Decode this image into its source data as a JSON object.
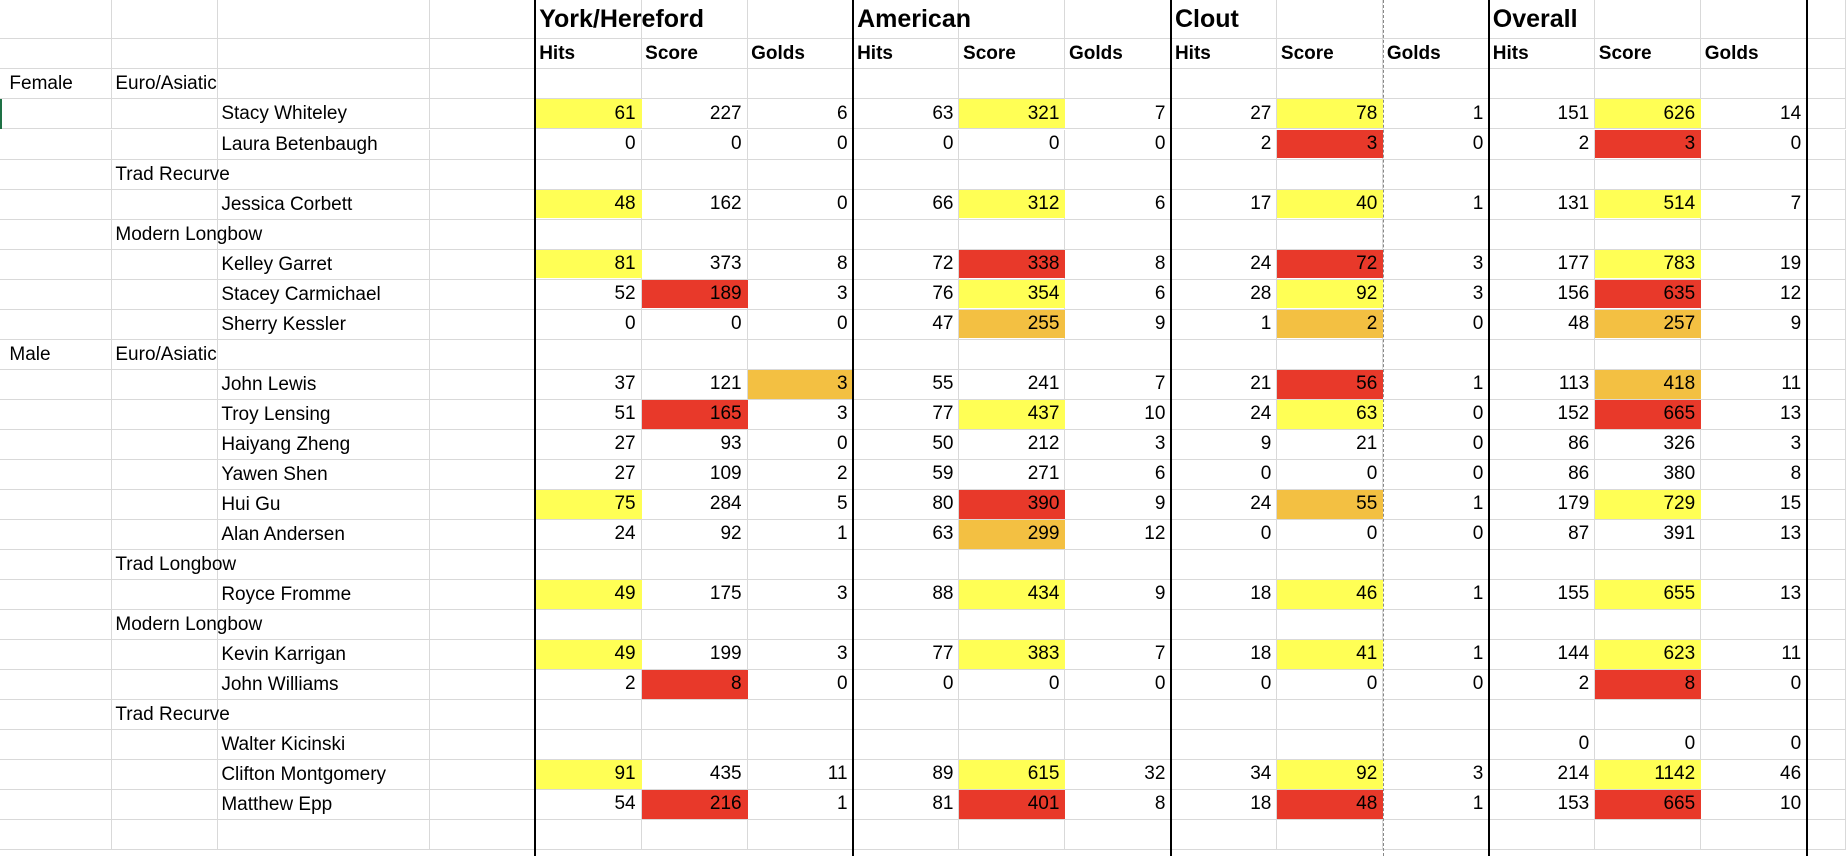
{
  "groups": [
    {
      "title": "York/Hereford",
      "columns": [
        "Hits",
        "Score",
        "Golds"
      ]
    },
    {
      "title": "American",
      "columns": [
        "Hits",
        "Score",
        "Golds"
      ]
    },
    {
      "title": "Clout",
      "columns": [
        "Hits",
        "Score",
        "Golds"
      ]
    },
    {
      "title": "Overall",
      "columns": [
        "Hits",
        "Score",
        "Golds"
      ]
    }
  ],
  "highlight_colors": {
    "yellow": "#ffff55",
    "red": "#e8392a",
    "orange": "#f3c042"
  },
  "rows": [
    {
      "gender": "Female",
      "division": "Euro/Asiatic"
    },
    {
      "name": "Stacy Whiteley",
      "cells": [
        61,
        227,
        6,
        63,
        321,
        7,
        27,
        78,
        1,
        151,
        626,
        14
      ],
      "fill": [
        "yellow",
        null,
        null,
        null,
        "yellow",
        null,
        null,
        "yellow",
        null,
        null,
        "yellow",
        null
      ]
    },
    {
      "name": "Laura Betenbaugh",
      "cells": [
        0,
        0,
        0,
        0,
        0,
        0,
        2,
        3,
        0,
        2,
        3,
        0
      ],
      "fill": [
        null,
        null,
        null,
        null,
        null,
        null,
        null,
        "red",
        null,
        null,
        "red",
        null
      ]
    },
    {
      "division": "Trad Recurve"
    },
    {
      "name": "Jessica Corbett",
      "cells": [
        48,
        162,
        0,
        66,
        312,
        6,
        17,
        40,
        1,
        131,
        514,
        7
      ],
      "fill": [
        "yellow",
        null,
        null,
        null,
        "yellow",
        null,
        null,
        "yellow",
        null,
        null,
        "yellow",
        null
      ]
    },
    {
      "division": "Modern Longbow"
    },
    {
      "name": "Kelley Garret",
      "cells": [
        81,
        373,
        8,
        72,
        338,
        8,
        24,
        72,
        3,
        177,
        783,
        19
      ],
      "fill": [
        "yellow",
        null,
        null,
        null,
        "red",
        null,
        null,
        "red",
        null,
        null,
        "yellow",
        null
      ]
    },
    {
      "name": "Stacey Carmichael",
      "cells": [
        52,
        189,
        3,
        76,
        354,
        6,
        28,
        92,
        3,
        156,
        635,
        12
      ],
      "fill": [
        null,
        "red",
        null,
        null,
        "yellow",
        null,
        null,
        "yellow",
        null,
        null,
        "red",
        null
      ]
    },
    {
      "name": "Sherry Kessler",
      "cells": [
        0,
        0,
        0,
        47,
        255,
        9,
        1,
        2,
        0,
        48,
        257,
        9
      ],
      "fill": [
        null,
        null,
        null,
        null,
        "orange",
        null,
        null,
        "orange",
        null,
        null,
        "orange",
        null
      ]
    },
    {
      "gender": "Male",
      "division": "Euro/Asiatic"
    },
    {
      "name": "John Lewis",
      "cells": [
        37,
        121,
        3,
        55,
        241,
        7,
        21,
        56,
        1,
        113,
        418,
        11
      ],
      "fill": [
        null,
        null,
        "orange",
        null,
        null,
        null,
        null,
        "red",
        null,
        null,
        "orange",
        null
      ]
    },
    {
      "name": "Troy Lensing",
      "cells": [
        51,
        165,
        3,
        77,
        437,
        10,
        24,
        63,
        0,
        152,
        665,
        13
      ],
      "fill": [
        null,
        "red",
        null,
        null,
        "yellow",
        null,
        null,
        "yellow",
        null,
        null,
        "red",
        null
      ]
    },
    {
      "name": "Haiyang Zheng",
      "cells": [
        27,
        93,
        0,
        50,
        212,
        3,
        9,
        21,
        0,
        86,
        326,
        3
      ],
      "fill": [
        null,
        null,
        null,
        null,
        null,
        null,
        null,
        null,
        null,
        null,
        null,
        null
      ]
    },
    {
      "name": "Yawen Shen",
      "cells": [
        27,
        109,
        2,
        59,
        271,
        6,
        0,
        0,
        0,
        86,
        380,
        8
      ],
      "fill": [
        null,
        null,
        null,
        null,
        null,
        null,
        null,
        null,
        null,
        null,
        null,
        null
      ]
    },
    {
      "name": "Hui Gu",
      "cells": [
        75,
        284,
        5,
        80,
        390,
        9,
        24,
        55,
        1,
        179,
        729,
        15
      ],
      "fill": [
        "yellow",
        null,
        null,
        null,
        "red",
        null,
        null,
        "orange",
        null,
        null,
        "yellow",
        null
      ]
    },
    {
      "name": "Alan Andersen",
      "cells": [
        24,
        92,
        1,
        63,
        299,
        12,
        0,
        0,
        0,
        87,
        391,
        13
      ],
      "fill": [
        null,
        null,
        null,
        null,
        "orange",
        null,
        null,
        null,
        null,
        null,
        null,
        null
      ]
    },
    {
      "division": "Trad Longbow"
    },
    {
      "name": "Royce Fromme",
      "cells": [
        49,
        175,
        3,
        88,
        434,
        9,
        18,
        46,
        1,
        155,
        655,
        13
      ],
      "fill": [
        "yellow",
        null,
        null,
        null,
        "yellow",
        null,
        null,
        "yellow",
        null,
        null,
        "yellow",
        null
      ]
    },
    {
      "division": "Modern Longbow"
    },
    {
      "name": "Kevin Karrigan",
      "cells": [
        49,
        199,
        3,
        77,
        383,
        7,
        18,
        41,
        1,
        144,
        623,
        11
      ],
      "fill": [
        "yellow",
        null,
        null,
        null,
        "yellow",
        null,
        null,
        "yellow",
        null,
        null,
        "yellow",
        null
      ]
    },
    {
      "name": "John Williams",
      "cells": [
        2,
        8,
        0,
        0,
        0,
        0,
        0,
        0,
        0,
        2,
        8,
        0
      ],
      "fill": [
        null,
        "red",
        null,
        null,
        null,
        null,
        null,
        null,
        null,
        null,
        "red",
        null
      ]
    },
    {
      "division": "Trad Recurve"
    },
    {
      "name": "Walter Kicinski",
      "cells": [
        null,
        null,
        null,
        null,
        null,
        null,
        null,
        null,
        null,
        0,
        0,
        0
      ],
      "fill": [
        null,
        null,
        null,
        null,
        null,
        null,
        null,
        null,
        null,
        null,
        null,
        null
      ]
    },
    {
      "name": "Clifton Montgomery",
      "cells": [
        91,
        435,
        11,
        89,
        615,
        32,
        34,
        92,
        3,
        214,
        1142,
        46
      ],
      "fill": [
        "yellow",
        null,
        null,
        null,
        "yellow",
        null,
        null,
        "yellow",
        null,
        null,
        "yellow",
        null
      ]
    },
    {
      "name": "Matthew Epp",
      "cells": [
        54,
        216,
        1,
        81,
        401,
        8,
        18,
        48,
        1,
        153,
        665,
        10
      ],
      "fill": [
        null,
        "red",
        null,
        null,
        "red",
        null,
        null,
        "red",
        null,
        null,
        "red",
        null
      ]
    }
  ]
}
